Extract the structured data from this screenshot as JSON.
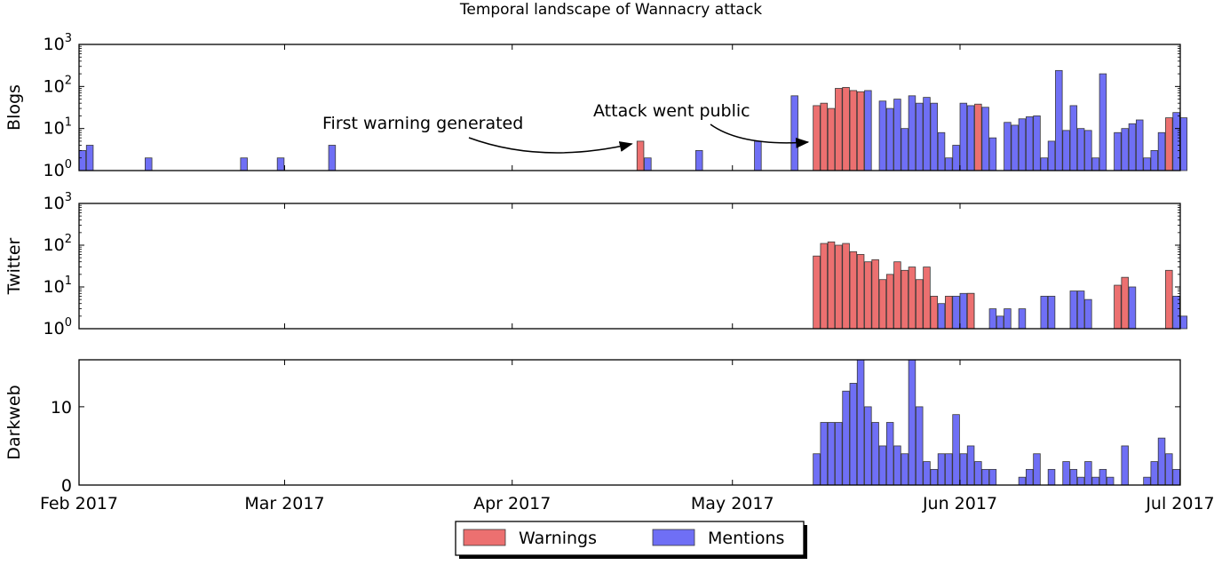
{
  "chart_data": {
    "type": "bar",
    "title": "Temporal landscape of Wannacry attack",
    "x_axis": {
      "start": "2017-02-01",
      "end": "2017-07-01",
      "bin": "1 day",
      "ticks": [
        {
          "date": "2017-02-01",
          "label": "Feb 2017"
        },
        {
          "date": "2017-03-01",
          "label": "Mar 2017"
        },
        {
          "date": "2017-04-01",
          "label": "Apr 2017"
        },
        {
          "date": "2017-05-01",
          "label": "May 2017"
        },
        {
          "date": "2017-06-01",
          "label": "Jun 2017"
        },
        {
          "date": "2017-07-01",
          "label": "Jul 2017"
        }
      ]
    },
    "colors": {
      "warnings": "#ec7070",
      "mentions": "#6f6ff5",
      "edge": "#3a3a3a"
    },
    "legend": {
      "placement": "bottom-center",
      "entries": [
        "Warnings",
        "Mentions"
      ]
    },
    "panels": [
      {
        "ylabel": "Blogs",
        "scale": "log",
        "ylim": [
          1,
          1000
        ],
        "yticks": [
          {
            "value": 1,
            "base": "10",
            "exp": "0"
          },
          {
            "value": 10,
            "base": "10",
            "exp": "1"
          },
          {
            "value": 100,
            "base": "10",
            "exp": "2"
          },
          {
            "value": 1000,
            "base": "10",
            "exp": "3"
          }
        ],
        "series": [
          {
            "name": "Mentions",
            "points": [
              [
                "2017-02-01",
                3
              ],
              [
                "2017-02-02",
                4
              ],
              [
                "2017-02-10",
                2
              ],
              [
                "2017-02-23",
                2
              ],
              [
                "2017-02-28",
                2
              ],
              [
                "2017-03-07",
                4
              ],
              [
                "2017-04-19",
                2
              ],
              [
                "2017-04-26",
                3
              ],
              [
                "2017-05-04",
                5
              ],
              [
                "2017-05-09",
                60
              ],
              [
                "2017-05-19",
                80
              ],
              [
                "2017-05-21",
                45
              ],
              [
                "2017-05-22",
                30
              ],
              [
                "2017-05-23",
                50
              ],
              [
                "2017-05-24",
                10
              ],
              [
                "2017-05-25",
                60
              ],
              [
                "2017-05-26",
                40
              ],
              [
                "2017-05-27",
                55
              ],
              [
                "2017-05-28",
                40
              ],
              [
                "2017-05-29",
                8
              ],
              [
                "2017-05-30",
                2
              ],
              [
                "2017-05-31",
                4
              ],
              [
                "2017-06-01",
                40
              ],
              [
                "2017-06-02",
                35
              ],
              [
                "2017-06-04",
                32
              ],
              [
                "2017-06-05",
                6
              ],
              [
                "2017-06-07",
                14
              ],
              [
                "2017-06-08",
                12
              ],
              [
                "2017-06-09",
                17
              ],
              [
                "2017-06-10",
                19
              ],
              [
                "2017-06-11",
                20
              ],
              [
                "2017-06-12",
                2
              ],
              [
                "2017-06-13",
                5
              ],
              [
                "2017-06-14",
                240
              ],
              [
                "2017-06-15",
                9
              ],
              [
                "2017-06-16",
                35
              ],
              [
                "2017-06-17",
                10
              ],
              [
                "2017-06-18",
                9
              ],
              [
                "2017-06-19",
                2
              ],
              [
                "2017-06-20",
                200
              ],
              [
                "2017-06-22",
                8
              ],
              [
                "2017-06-23",
                10
              ],
              [
                "2017-06-24",
                13
              ],
              [
                "2017-06-25",
                16
              ],
              [
                "2017-06-26",
                2
              ],
              [
                "2017-06-27",
                3
              ],
              [
                "2017-06-28",
                8
              ],
              [
                "2017-06-30",
                24
              ],
              [
                "2017-07-01",
                18
              ]
            ]
          },
          {
            "name": "Warnings",
            "points": [
              [
                "2017-04-18",
                5
              ],
              [
                "2017-05-12",
                35
              ],
              [
                "2017-05-13",
                40
              ],
              [
                "2017-05-14",
                30
              ],
              [
                "2017-05-15",
                90
              ],
              [
                "2017-05-16",
                95
              ],
              [
                "2017-05-17",
                80
              ],
              [
                "2017-05-18",
                75
              ],
              [
                "2017-06-03",
                38
              ],
              [
                "2017-06-29",
                18
              ]
            ]
          }
        ]
      },
      {
        "ylabel": "Twitter",
        "scale": "log",
        "ylim": [
          1,
          1000
        ],
        "yticks": [
          {
            "value": 1,
            "base": "10",
            "exp": "0"
          },
          {
            "value": 10,
            "base": "10",
            "exp": "1"
          },
          {
            "value": 100,
            "base": "10",
            "exp": "2"
          },
          {
            "value": 1000,
            "base": "10",
            "exp": "3"
          }
        ],
        "series": [
          {
            "name": "Mentions",
            "points": [
              [
                "2017-05-27",
                4
              ],
              [
                "2017-05-29",
                4
              ],
              [
                "2017-05-30",
                5
              ],
              [
                "2017-05-31",
                6
              ],
              [
                "2017-06-01",
                7
              ],
              [
                "2017-06-02",
                7
              ],
              [
                "2017-06-05",
                3
              ],
              [
                "2017-06-06",
                2
              ],
              [
                "2017-06-07",
                3
              ],
              [
                "2017-06-09",
                3
              ],
              [
                "2017-06-12",
                6
              ],
              [
                "2017-06-13",
                6
              ],
              [
                "2017-06-16",
                8
              ],
              [
                "2017-06-17",
                8
              ],
              [
                "2017-06-18",
                5
              ],
              [
                "2017-06-24",
                10
              ],
              [
                "2017-06-30",
                6
              ],
              [
                "2017-07-01",
                2
              ]
            ]
          },
          {
            "name": "Warnings",
            "points": [
              [
                "2017-05-12",
                55
              ],
              [
                "2017-05-13",
                110
              ],
              [
                "2017-05-14",
                120
              ],
              [
                "2017-05-15",
                100
              ],
              [
                "2017-05-16",
                110
              ],
              [
                "2017-05-17",
                70
              ],
              [
                "2017-05-18",
                60
              ],
              [
                "2017-05-19",
                40
              ],
              [
                "2017-05-20",
                45
              ],
              [
                "2017-05-21",
                15
              ],
              [
                "2017-05-22",
                20
              ],
              [
                "2017-05-23",
                40
              ],
              [
                "2017-05-24",
                25
              ],
              [
                "2017-05-25",
                30
              ],
              [
                "2017-05-26",
                15
              ],
              [
                "2017-05-27",
                30
              ],
              [
                "2017-05-28",
                6
              ],
              [
                "2017-05-30",
                6
              ],
              [
                "2017-06-02",
                7
              ],
              [
                "2017-06-22",
                11
              ],
              [
                "2017-06-23",
                17
              ],
              [
                "2017-06-29",
                25
              ]
            ]
          }
        ]
      },
      {
        "ylabel": "Darkweb",
        "scale": "linear",
        "ylim": [
          0,
          16
        ],
        "yticks": [
          {
            "value": 0,
            "label": "0"
          },
          {
            "value": 10,
            "label": "10"
          }
        ],
        "series": [
          {
            "name": "Mentions",
            "points": [
              [
                "2017-05-12",
                4
              ],
              [
                "2017-05-13",
                8
              ],
              [
                "2017-05-14",
                8
              ],
              [
                "2017-05-15",
                8
              ],
              [
                "2017-05-16",
                12
              ],
              [
                "2017-05-17",
                13
              ],
              [
                "2017-05-18",
                16
              ],
              [
                "2017-05-19",
                10
              ],
              [
                "2017-05-20",
                8
              ],
              [
                "2017-05-21",
                5
              ],
              [
                "2017-05-22",
                8
              ],
              [
                "2017-05-23",
                5
              ],
              [
                "2017-05-24",
                4
              ],
              [
                "2017-05-25",
                16
              ],
              [
                "2017-05-26",
                10
              ],
              [
                "2017-05-27",
                3
              ],
              [
                "2017-05-28",
                2
              ],
              [
                "2017-05-29",
                4
              ],
              [
                "2017-05-30",
                4
              ],
              [
                "2017-05-31",
                9
              ],
              [
                "2017-06-01",
                4
              ],
              [
                "2017-06-02",
                5
              ],
              [
                "2017-06-03",
                3
              ],
              [
                "2017-06-04",
                2
              ],
              [
                "2017-06-05",
                2
              ],
              [
                "2017-06-09",
                1
              ],
              [
                "2017-06-10",
                2
              ],
              [
                "2017-06-11",
                4
              ],
              [
                "2017-06-13",
                2
              ],
              [
                "2017-06-15",
                3
              ],
              [
                "2017-06-16",
                2
              ],
              [
                "2017-06-17",
                1
              ],
              [
                "2017-06-18",
                3
              ],
              [
                "2017-06-19",
                1
              ],
              [
                "2017-06-20",
                2
              ],
              [
                "2017-06-21",
                1
              ],
              [
                "2017-06-23",
                5
              ],
              [
                "2017-06-26",
                1
              ],
              [
                "2017-06-27",
                3
              ],
              [
                "2017-06-28",
                6
              ],
              [
                "2017-06-29",
                4
              ],
              [
                "2017-06-30",
                2
              ]
            ]
          }
        ]
      }
    ],
    "annotations": [
      {
        "text": "First warning generated",
        "panel": "Blogs",
        "target_date": "2017-04-18"
      },
      {
        "text": "Attack went public",
        "panel": "Blogs",
        "target_date": "2017-05-12"
      }
    ]
  }
}
